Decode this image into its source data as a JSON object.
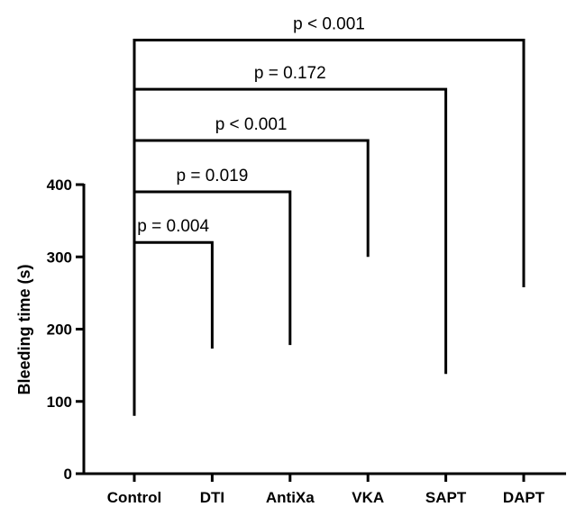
{
  "chart_data": {
    "type": "bracket",
    "ylabel": "Bleeding time (s)",
    "xlabel": "",
    "ylim": [
      0,
      400
    ],
    "yticks": [
      "0",
      "100",
      "200",
      "300",
      "400"
    ],
    "categories": [
      "Control",
      "DTI",
      "AntiXa",
      "VKA",
      "SAPT",
      "DAPT"
    ],
    "control_bottom": 80,
    "comparisons": [
      {
        "group": "DTI",
        "value": 173,
        "bracket_top": 320,
        "p": "p = 0.004"
      },
      {
        "group": "AntiXa",
        "value": 178,
        "bracket_top": 390,
        "p": "p = 0.019"
      },
      {
        "group": "VKA",
        "value": 300,
        "bracket_top": 461,
        "p": "p < 0.001"
      },
      {
        "group": "SAPT",
        "value": 138,
        "bracket_top": 532,
        "p": "p = 0.172"
      },
      {
        "group": "DAPT",
        "value": 258,
        "bracket_top": 600,
        "p": "p < 0.001"
      }
    ]
  }
}
